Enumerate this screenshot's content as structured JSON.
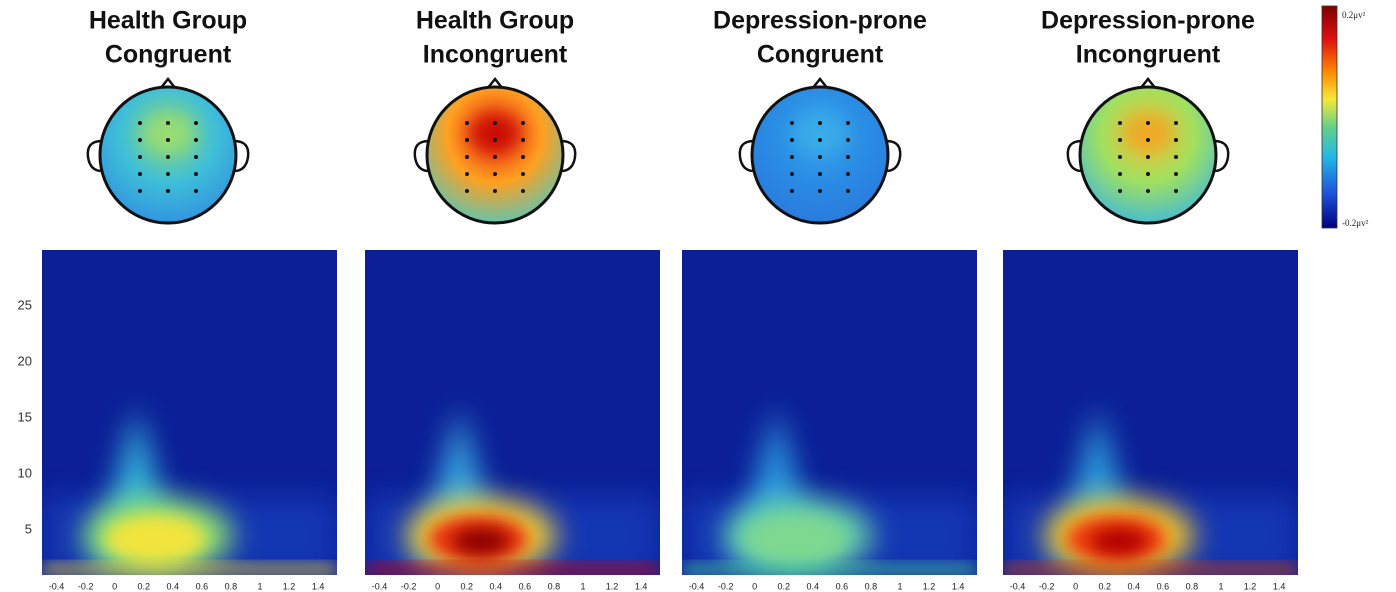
{
  "chart_data": [
    {
      "type": "heatmap",
      "title": [
        "Health Group",
        "Congruent"
      ],
      "xlim": [
        -0.5,
        1.53
      ],
      "ylim": [
        1,
        30
      ],
      "xticks": [
        -0.4,
        -0.2,
        0,
        0.2,
        0.4,
        0.6,
        0.8,
        1,
        1.2,
        1.4
      ],
      "yticks": [
        5,
        10,
        15,
        20,
        25
      ]
    },
    {
      "type": "heatmap",
      "title": [
        "Health Group",
        "Incongruent"
      ],
      "xlim": [
        -0.5,
        1.53
      ],
      "ylim": [
        1,
        30
      ],
      "xticks": [
        -0.4,
        -0.2,
        0,
        0.2,
        0.4,
        0.6,
        0.8,
        1,
        1.2,
        1.4
      ]
    },
    {
      "type": "heatmap",
      "title": [
        "Depression-prone",
        "Congruent"
      ],
      "xlim": [
        -0.5,
        1.53
      ],
      "ylim": [
        1,
        30
      ],
      "xticks": [
        -0.4,
        -0.2,
        0,
        0.2,
        0.4,
        0.6,
        0.8,
        1,
        1.2,
        1.4
      ]
    },
    {
      "type": "heatmap",
      "title": [
        "Depression-prone",
        "Incongruent"
      ],
      "xlim": [
        -0.5,
        1.53
      ],
      "ylim": [
        1,
        30
      ],
      "xticks": [
        -0.4,
        -0.2,
        0,
        0.2,
        0.4,
        0.6,
        0.8,
        1,
        1.2,
        1.4
      ]
    }
  ],
  "colorbar": {
    "max_label": "0.2μv²",
    "min_label": "-0.2μv²"
  }
}
